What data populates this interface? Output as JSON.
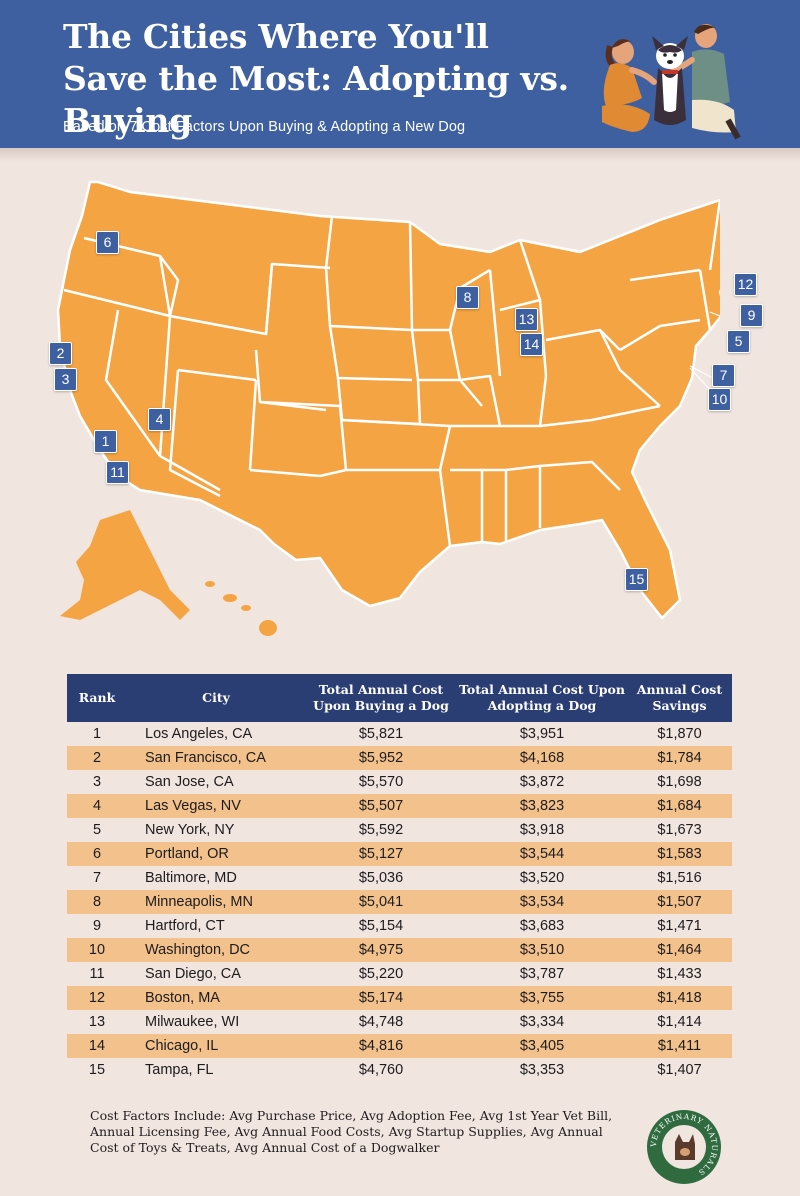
{
  "header": {
    "title": "The Cities Where You'll Save the Most: Adopting vs. Buying",
    "subtitle": "Based on 7 Cost Factors Upon Buying & Adopting a New Dog"
  },
  "map": {
    "markers": [
      "1",
      "2",
      "3",
      "4",
      "5",
      "6",
      "7",
      "8",
      "9",
      "10",
      "11",
      "12",
      "13",
      "14",
      "15"
    ]
  },
  "table": {
    "headers": {
      "rank": "Rank",
      "city": "City",
      "buy": "Total Annual Cost Upon Buying a Dog",
      "adopt": "Total Annual Cost Upon Adopting a Dog",
      "savings": "Annual Cost Savings"
    },
    "rows": [
      {
        "rank": "1",
        "city": "Los Angeles, CA",
        "buy": "$5,821",
        "adopt": "$3,951",
        "savings": "$1,870"
      },
      {
        "rank": "2",
        "city": "San Francisco, CA",
        "buy": "$5,952",
        "adopt": "$4,168",
        "savings": "$1,784"
      },
      {
        "rank": "3",
        "city": "San Jose, CA",
        "buy": "$5,570",
        "adopt": "$3,872",
        "savings": "$1,698"
      },
      {
        "rank": "4",
        "city": "Las Vegas, NV",
        "buy": "$5,507",
        "adopt": "$3,823",
        "savings": "$1,684"
      },
      {
        "rank": "5",
        "city": "New York, NY",
        "buy": "$5,592",
        "adopt": "$3,918",
        "savings": "$1,673"
      },
      {
        "rank": "6",
        "city": "Portland, OR",
        "buy": "$5,127",
        "adopt": "$3,544",
        "savings": "$1,583"
      },
      {
        "rank": "7",
        "city": "Baltimore, MD",
        "buy": "$5,036",
        "adopt": "$3,520",
        "savings": "$1,516"
      },
      {
        "rank": "8",
        "city": "Minneapolis, MN",
        "buy": "$5,041",
        "adopt": "$3,534",
        "savings": "$1,507"
      },
      {
        "rank": "9",
        "city": "Hartford, CT",
        "buy": "$5,154",
        "adopt": "$3,683",
        "savings": "$1,471"
      },
      {
        "rank": "10",
        "city": "Washington, DC",
        "buy": "$4,975",
        "adopt": "$3,510",
        "savings": "$1,464"
      },
      {
        "rank": "11",
        "city": "San Diego, CA",
        "buy": "$5,220",
        "adopt": "$3,787",
        "savings": "$1,433"
      },
      {
        "rank": "12",
        "city": "Boston, MA",
        "buy": "$5,174",
        "adopt": "$3,755",
        "savings": "$1,418"
      },
      {
        "rank": "13",
        "city": "Milwaukee, WI",
        "buy": "$4,748",
        "adopt": "$3,334",
        "savings": "$1,414"
      },
      {
        "rank": "14",
        "city": "Chicago, IL",
        "buy": "$4,816",
        "adopt": "$3,405",
        "savings": "$1,411"
      },
      {
        "rank": "15",
        "city": "Tampa, FL",
        "buy": "$4,760",
        "adopt": "$3,353",
        "savings": "$1,407"
      }
    ]
  },
  "footnote": "Cost Factors Include: Avg Purchase Price, Avg Adoption Fee, Avg 1st Year Vet Bill, Annual Licensing Fee, Avg Annual Food Costs, Avg Startup Supplies, Avg Annual Cost of Toys & Treats, Avg Annual Cost of a Dogwalker",
  "logo": {
    "text": "VETERINARY NATURALS"
  },
  "colors": {
    "header": "#3e5fa0",
    "table_header": "#2b3e74",
    "map": "#f4a442",
    "stripe": "#f3c18c",
    "background": "#f1e5e0"
  }
}
